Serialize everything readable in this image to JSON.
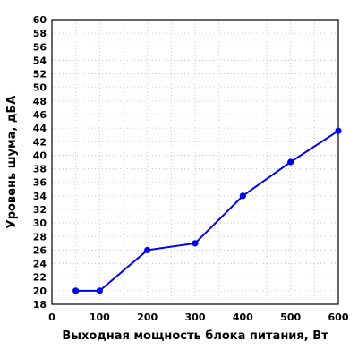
{
  "chart_data": {
    "type": "line",
    "xlabel": "Выходная мощность блока питания, Вт",
    "ylabel": "Уровень шума, дБА",
    "xlim": [
      0,
      600
    ],
    "ylim": [
      18,
      60
    ],
    "x_ticks": [
      0,
      100,
      200,
      300,
      400,
      500,
      600
    ],
    "y_ticks": [
      18,
      20,
      22,
      24,
      26,
      28,
      30,
      32,
      34,
      36,
      38,
      40,
      42,
      44,
      46,
      48,
      50,
      52,
      54,
      56,
      58,
      60
    ],
    "grid": true,
    "x_grid_step": 50,
    "series": [
      {
        "color": "#0000ee",
        "x": [
          50,
          100,
          200,
          300,
          400,
          500,
          600
        ],
        "y": [
          20,
          20,
          26,
          27,
          34,
          39,
          43.6
        ]
      }
    ]
  }
}
